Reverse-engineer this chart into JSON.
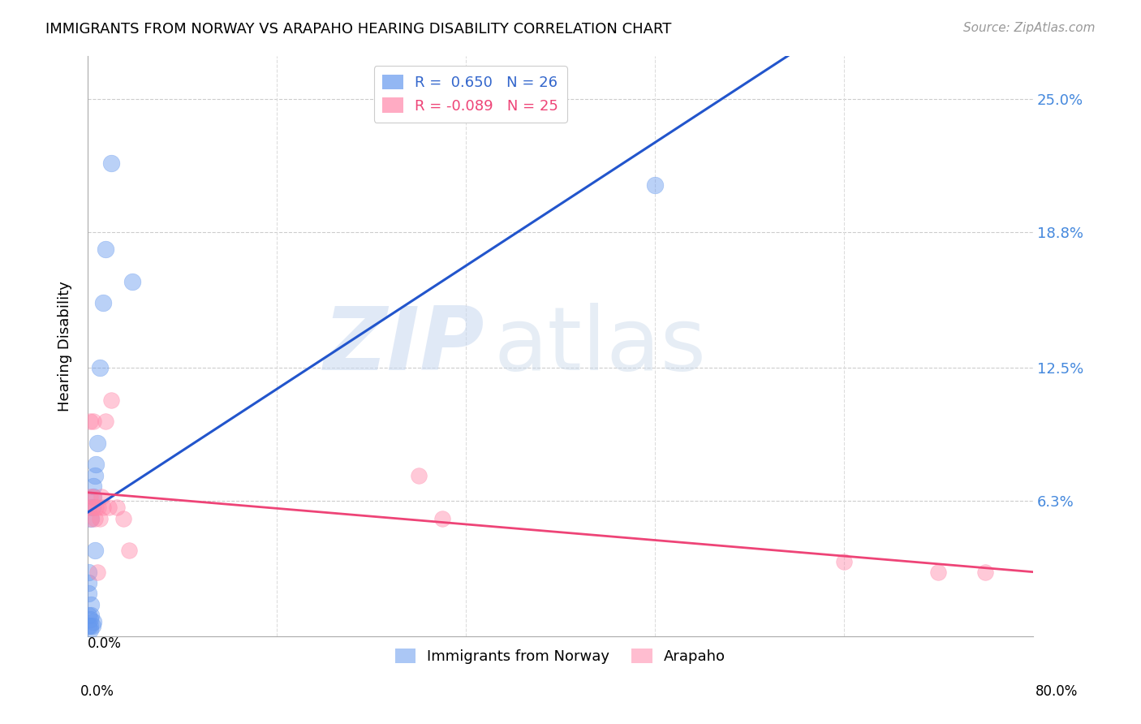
{
  "title": "IMMIGRANTS FROM NORWAY VS ARAPAHO HEARING DISABILITY CORRELATION CHART",
  "source": "Source: ZipAtlas.com",
  "ylabel": "Hearing Disability",
  "ytick_values": [
    0.0,
    0.063,
    0.125,
    0.188,
    0.25
  ],
  "ytick_labels": [
    "",
    "6.3%",
    "12.5%",
    "18.8%",
    "25.0%"
  ],
  "xlim": [
    0.0,
    0.8
  ],
  "ylim": [
    0.0,
    0.27
  ],
  "norway_color": "#6699ee",
  "arapaho_color": "#ff88aa",
  "norway_line_color": "#2255cc",
  "arapaho_line_color": "#ee4477",
  "legend_r1": "R =  0.650   N = 26",
  "legend_r2": "R = -0.089   N = 25",
  "watermark_zip": "ZIP",
  "watermark_atlas": "atlas",
  "norway_scatter_x": [
    0.001,
    0.001,
    0.001,
    0.001,
    0.001,
    0.002,
    0.002,
    0.002,
    0.003,
    0.003,
    0.003,
    0.004,
    0.004,
    0.005,
    0.005,
    0.005,
    0.006,
    0.006,
    0.007,
    0.008,
    0.01,
    0.013,
    0.015,
    0.02,
    0.038,
    0.48
  ],
  "norway_scatter_y": [
    0.005,
    0.01,
    0.02,
    0.025,
    0.03,
    0.003,
    0.005,
    0.008,
    0.01,
    0.015,
    0.055,
    0.005,
    0.06,
    0.007,
    0.065,
    0.07,
    0.04,
    0.075,
    0.08,
    0.09,
    0.125,
    0.155,
    0.18,
    0.22,
    0.165,
    0.21
  ],
  "arapaho_scatter_x": [
    0.001,
    0.002,
    0.002,
    0.003,
    0.004,
    0.005,
    0.005,
    0.006,
    0.007,
    0.008,
    0.009,
    0.01,
    0.012,
    0.013,
    0.015,
    0.018,
    0.02,
    0.025,
    0.03,
    0.035,
    0.28,
    0.3,
    0.64,
    0.72,
    0.76
  ],
  "arapaho_scatter_y": [
    0.06,
    0.065,
    0.1,
    0.055,
    0.06,
    0.065,
    0.1,
    0.055,
    0.06,
    0.03,
    0.06,
    0.055,
    0.065,
    0.06,
    0.1,
    0.06,
    0.11,
    0.06,
    0.055,
    0.04,
    0.075,
    0.055,
    0.035,
    0.03,
    0.03
  ]
}
